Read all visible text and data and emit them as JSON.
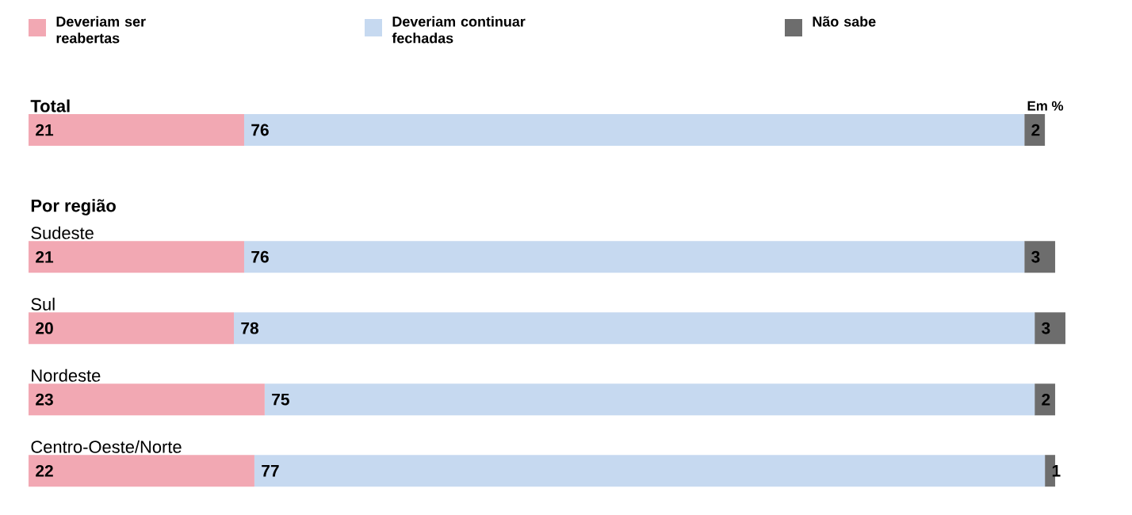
{
  "chart_data": {
    "type": "bar",
    "orientation": "horizontal",
    "stacked": true,
    "data_labels": true,
    "legend": "top",
    "categories": [
      "Total",
      "Sudeste",
      "Sul",
      "Nordeste",
      "Centro-Oeste/Norte"
    ],
    "series": [
      {
        "name": "Deveriam ser reabertas",
        "color": "#f2a8b3",
        "values": [
          21,
          21,
          20,
          23,
          22
        ]
      },
      {
        "name": "Deveriam continuar fechadas",
        "color": "#c6d9f0",
        "values": [
          76,
          76,
          78,
          75,
          77
        ]
      },
      {
        "name": "Não sabe",
        "color": "#6d6d6d",
        "values": [
          2,
          3,
          3,
          2,
          1
        ]
      }
    ],
    "annotations": [
      "Em %",
      "Por região"
    ]
  }
}
